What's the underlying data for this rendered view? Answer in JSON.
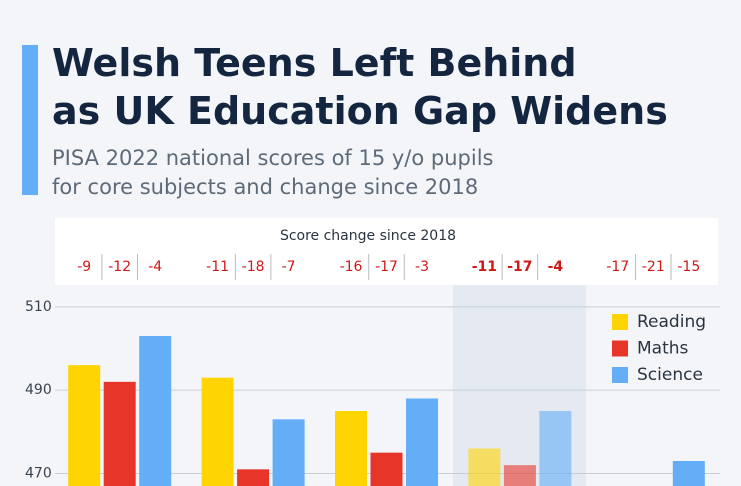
{
  "chart_data": {
    "type": "bar",
    "title": [
      "Welsh Teens Left Behind",
      "as UK Education Gap Widens"
    ],
    "subtitle": [
      "PISA 2022 national scores of 15 y/o pupils",
      "for core subjects and change since 2018"
    ],
    "change_title": "Score change since 2018",
    "categories": [
      null,
      null,
      null,
      null,
      null
    ],
    "series": [
      {
        "name": "Reading",
        "color": "#ffd400",
        "values": [
          496,
          493,
          485,
          476,
          null
        ],
        "changes": [
          -9,
          -11,
          -16,
          -11,
          -17
        ]
      },
      {
        "name": "Maths",
        "color": "#e8352a",
        "values": [
          492,
          471,
          475,
          472,
          null
        ],
        "changes": [
          -12,
          -18,
          -17,
          -17,
          -21
        ]
      },
      {
        "name": "Science",
        "color": "#63aef7",
        "values": [
          503,
          483,
          488,
          485,
          473
        ],
        "changes": [
          -4,
          -7,
          -3,
          -4,
          -15
        ]
      }
    ],
    "ylim": [
      467,
      515
    ],
    "yticks": [
      470,
      490,
      510
    ],
    "grid": true,
    "legend": "top-right"
  }
}
